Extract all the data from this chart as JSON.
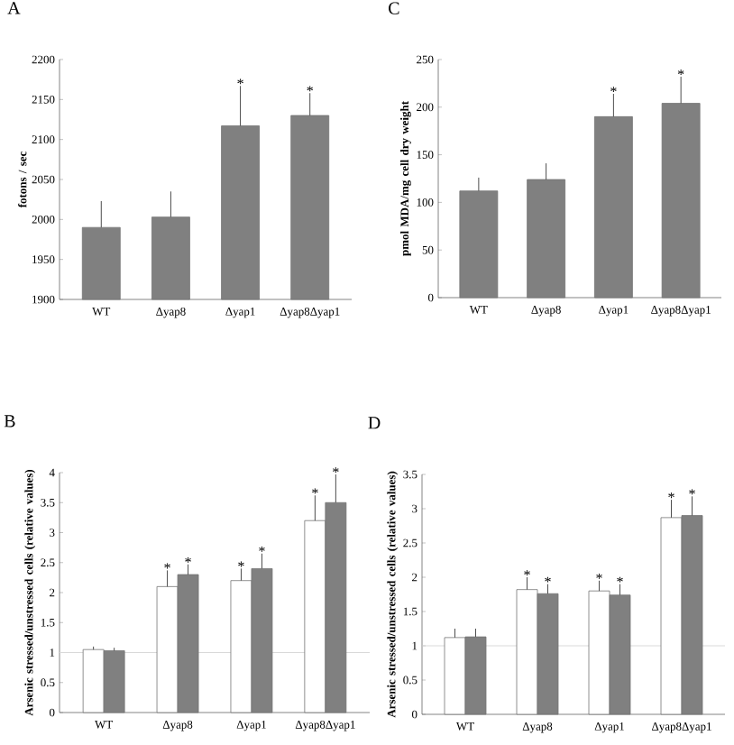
{
  "chart_data": [
    {
      "type": "bar",
      "title": "A",
      "ylabel": "fotons / sec",
      "categories": [
        "WT",
        "Δyap8",
        "Δyap1",
        "Δyap8Δyap1"
      ],
      "values": [
        1990,
        2003,
        2117,
        2130
      ],
      "errors": [
        [
          1990,
          2023
        ],
        [
          2003,
          2035
        ],
        [
          2117,
          2167
        ],
        [
          2130,
          2158
        ]
      ],
      "value_labels": [
        null,
        null,
        "*",
        "*"
      ],
      "color": "#808080",
      "ylim": [
        1900,
        2200
      ],
      "yticks": [
        1900,
        1950,
        2000,
        2050,
        2100,
        2150,
        2200
      ]
    },
    {
      "type": "bar",
      "title": "C",
      "ylabel": "pmol MDA/mg cell dry weight",
      "categories": [
        "WT",
        "Δyap8",
        "Δyap1",
        "Δyap8Δyap1"
      ],
      "values": [
        112,
        124,
        190,
        204
      ],
      "errors": [
        [
          112,
          126
        ],
        [
          124,
          141
        ],
        [
          190,
          214
        ],
        [
          204,
          232
        ]
      ],
      "value_labels": [
        null,
        null,
        "*",
        "*"
      ],
      "color": "#808080",
      "ylim": [
        0,
        250
      ],
      "yticks": [
        0,
        50,
        100,
        150,
        200,
        250
      ]
    },
    {
      "type": "bar",
      "title": "B",
      "ylabel": "Arsenic stressed/unstressed cells (relative values)",
      "categories": [
        "WT",
        "Δyap8",
        "Δyap1",
        "Δyap8Δyap1"
      ],
      "series": [
        {
          "color": "#ffffff",
          "values": [
            1.05,
            2.1,
            2.2,
            3.2
          ],
          "errors": [
            [
              1.05,
              1.1
            ],
            [
              2.1,
              2.37
            ],
            [
              2.2,
              2.4
            ],
            [
              3.2,
              3.62
            ]
          ],
          "value_labels": [
            null,
            "*",
            "*",
            "*"
          ]
        },
        {
          "color": "#808080",
          "values": [
            1.03,
            2.3,
            2.4,
            3.5
          ],
          "errors": [
            [
              1.03,
              1.08
            ],
            [
              2.3,
              2.47
            ],
            [
              2.4,
              2.65
            ],
            [
              3.5,
              3.97
            ]
          ],
          "value_labels": [
            null,
            "*",
            "*",
            "*"
          ]
        }
      ],
      "ylim": [
        0,
        4
      ],
      "yticks": [
        0,
        0.5,
        1,
        1.5,
        2,
        2.5,
        3,
        3.5,
        4
      ],
      "ref_lines": [
        {
          "axis": "y",
          "value": 1,
          "color": "#d9d9d9"
        }
      ]
    },
    {
      "type": "bar",
      "title": "D",
      "ylabel": "Arsenic stressed/unstressed cells (relative values)",
      "categories": [
        "WT",
        "Δyap8",
        "Δyap1",
        "Δyap8Δyap1"
      ],
      "series": [
        {
          "color": "#ffffff",
          "values": [
            1.12,
            1.82,
            1.8,
            2.87
          ],
          "errors": [
            [
              1.12,
              1.25
            ],
            [
              1.82,
              2.0
            ],
            [
              1.8,
              1.95
            ],
            [
              2.87,
              3.13
            ]
          ],
          "value_labels": [
            null,
            "*",
            "*",
            "*"
          ]
        },
        {
          "color": "#808080",
          "values": [
            1.13,
            1.76,
            1.74,
            2.9
          ],
          "errors": [
            [
              1.13,
              1.25
            ],
            [
              1.76,
              1.9
            ],
            [
              1.74,
              1.9
            ],
            [
              2.9,
              3.18
            ]
          ],
          "value_labels": [
            null,
            "*",
            "*",
            "*"
          ]
        }
      ],
      "ylim": [
        0,
        3.5
      ],
      "yticks": [
        0,
        0.5,
        1,
        1.5,
        2,
        2.5,
        3,
        3.5
      ],
      "ref_lines": [
        {
          "axis": "y",
          "value": 1,
          "color": "#d9d9d9"
        }
      ]
    }
  ]
}
